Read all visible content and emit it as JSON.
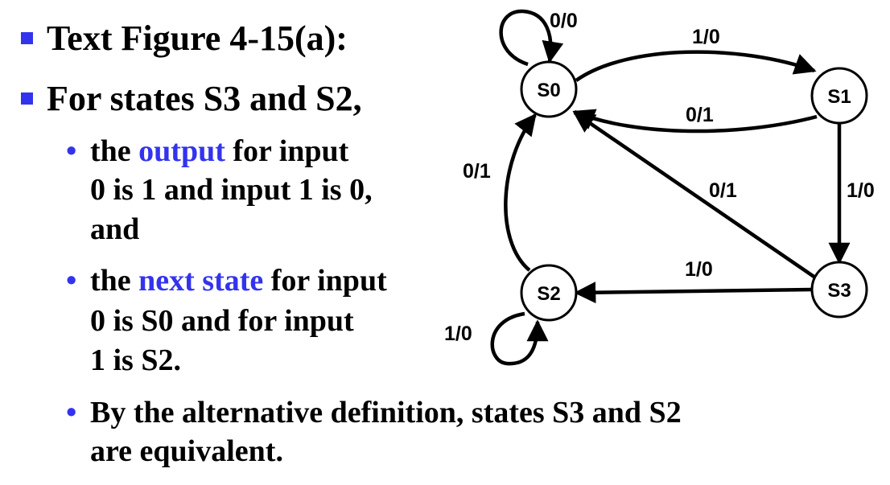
{
  "bullets": {
    "b1": "Text Figure 4-15(a):",
    "b2": "For states S3 and S2,",
    "s1": {
      "l1_pre": "the ",
      "l1_hl": "output",
      "l1_post": " for input",
      "l2": "0 is 1 and input 1 is 0,",
      "l3": "and"
    },
    "s2": {
      "l1_pre": "the ",
      "l1_hl": "next state",
      "l1_post": " for input",
      "l2": "0 is S0 and for input",
      "l3": "1 is  S2."
    },
    "s3": {
      "l1": "By the alternative definition, states S3 and S2",
      "l2": "are equivalent."
    }
  },
  "colors": {
    "bullet": "#3333ee",
    "highlight": "#3333ee",
    "text": "#000000"
  },
  "diagram": {
    "states": {
      "s0": "S0",
      "s1": "S1",
      "s2": "S2",
      "s3": "S3"
    },
    "transitions": {
      "s0_self": "0/0",
      "s0_s1": "1/0",
      "s1_s0": "0/1",
      "s1_s3": "1/0",
      "s3_s0": "0/1",
      "s3_s2": "1/0",
      "s2_s0": "0/1",
      "s2_self": "1/0"
    }
  }
}
